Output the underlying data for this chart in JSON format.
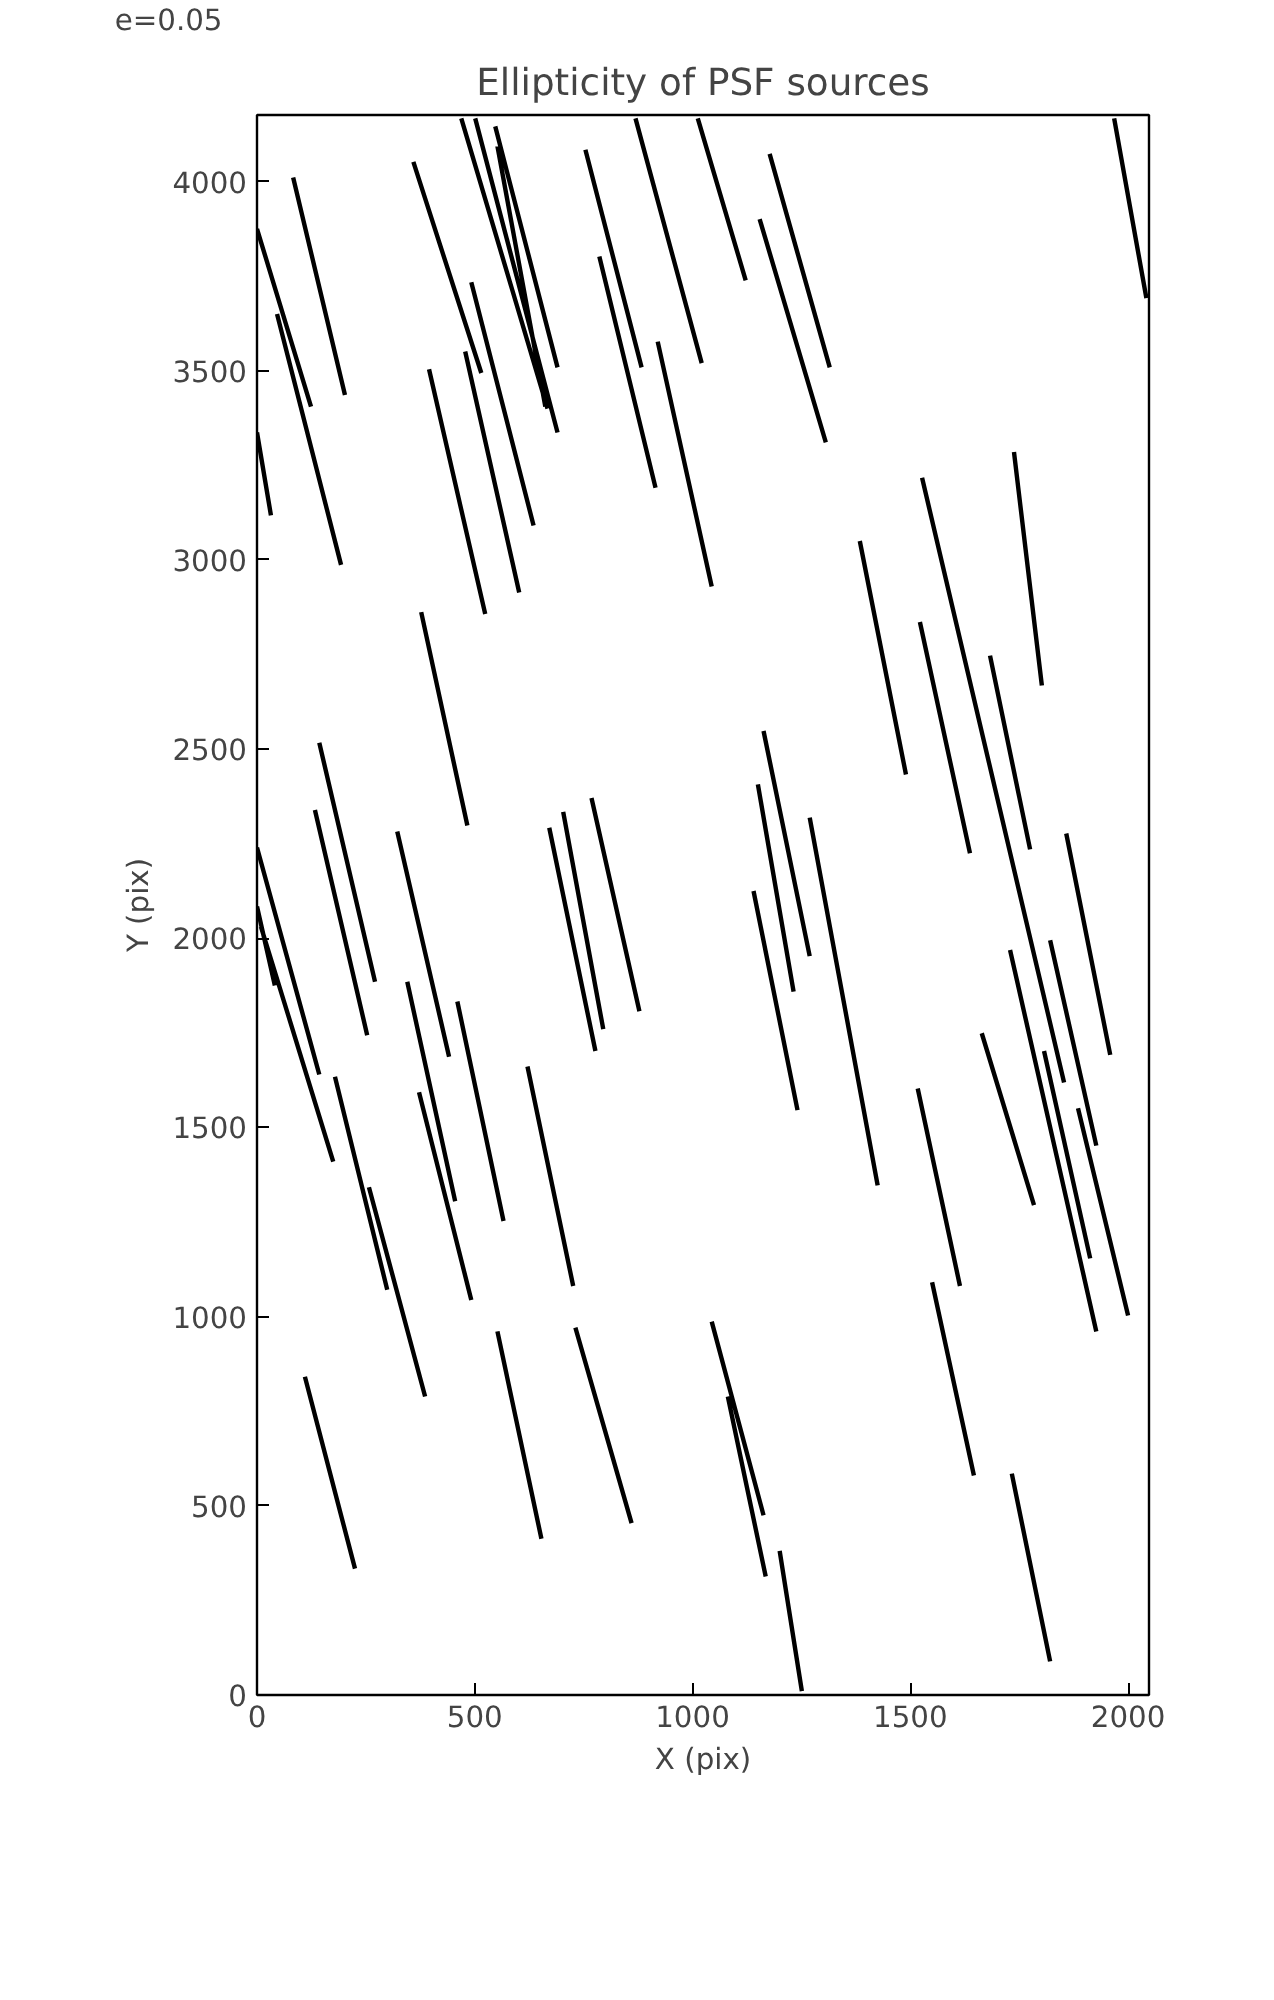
{
  "chart_data": {
    "type": "line",
    "title": "Ellipticity of PSF sources",
    "xlabel": "X (pix)",
    "ylabel": "Y (pix)",
    "xlim": [
      0,
      2048
    ],
    "ylim": [
      0,
      4176
    ],
    "xticks": [
      0,
      500,
      1000,
      1500,
      2000
    ],
    "yticks": [
      0,
      500,
      1000,
      1500,
      2000,
      2500,
      3000,
      3500,
      4000
    ],
    "grid": false,
    "legend": "top left",
    "marker": "none",
    "line_style": "solid",
    "series": [
      {
        "name": "e=0.05",
        "color": "#000000",
        "x": [
          83,
          202,
          null,
          0,
          124,
          null,
          46,
          193,
          null,
          0,
          32,
          null,
          359,
          515,
          null,
          492,
          635,
          null,
          395,
          524,
          null,
          478,
          602,
          null,
          377,
          483,
          null,
          469,
          667,
          null,
          501,
          690,
          null,
          547,
          690,
          null,
          552,
          662,
          null,
          754,
          883,
          null,
          786,
          915,
          null,
          869,
          1021,
          null,
          920,
          1044,
          null,
          1012,
          1122,
          null,
          1177,
          1315,
          null,
          1154,
          1306,
          null,
          1968,
          2042,
          null,
          1384,
          1490,
          null,
          1527,
          1853,
          null,
          1522,
          1637,
          null,
          1738,
          1802,
          null,
          1683,
          1775,
          null,
          1858,
          1959,
          null,
          1140,
          1241,
          null,
          1150,
          1232,
          null,
          1163,
          1269,
          null,
          1269,
          1425,
          null,
          1517,
          1614,
          null,
          1664,
          1784,
          null,
          1729,
          1927,
          null,
          1821,
          1927,
          null,
          1807,
          1913,
          null,
          1885,
          2000,
          null,
          1550,
          1646,
          null,
          1733,
          1821,
          null,
          1044,
          1163,
          null,
          1081,
          1168,
          null,
          1200,
          1251,
          null,
          0,
          143,
          null,
          9,
          175,
          null,
          133,
          253,
          null,
          143,
          271,
          null,
          322,
          441,
          null,
          345,
          455,
          null,
          460,
          566,
          null,
          179,
          299,
          null,
          257,
          386,
          null,
          372,
          492,
          null,
          621,
          726,
          null,
          552,
          653,
          null,
          731,
          860,
          null,
          110,
          225,
          null,
          671,
          777,
          null,
          703,
          795,
          null,
          768,
          878,
          null,
          0,
          41
        ],
        "values": [
          4011,
          3436,
          null,
          3875,
          3405,
          null,
          3650,
          2987,
          null,
          3337,
          3118,
          null,
          4052,
          3494,
          null,
          3734,
          3091,
          null,
          3504,
          2857,
          null,
          3551,
          2914,
          null,
          2862,
          2298,
          null,
          4167,
          3400,
          null,
          4167,
          3337,
          null,
          4146,
          3509,
          null,
          4094,
          3405,
          null,
          4084,
          3509,
          null,
          3802,
          3191,
          null,
          4167,
          3520,
          null,
          3577,
          2930,
          null,
          4167,
          3739,
          null,
          4073,
          3509,
          null,
          3901,
          3311,
          null,
          4167,
          3692,
          null,
          3050,
          2433,
          null,
          3217,
          1619,
          null,
          2836,
          2225,
          null,
          3285,
          2668,
          null,
          2747,
          2235,
          null,
          2277,
          1692,
          null,
          2125,
          1546,
          null,
          2407,
          1859,
          null,
          2548,
          1953,
          null,
          2319,
          1347,
          null,
          1603,
          1081,
          null,
          1749,
          1295,
          null,
          1969,
          961,
          null,
          1995,
          1452,
          null,
          1702,
          1154,
          null,
          1551,
          1003,
          null,
          1091,
          580,
          null,
          585,
          89,
          null,
          987,
          475,
          null,
          789,
          313,
          null,
          381,
          10,
          null,
          2240,
          1640,
          null,
          2031,
          1410,
          null,
          2339,
          1744,
          null,
          2517,
          1885,
          null,
          2282,
          1687,
          null,
          1885,
          1305,
          null,
          1833,
          1253,
          null,
          1634,
          1071,
          null,
          1342,
          789,
          null,
          1593,
          1044,
          null,
          1661,
          1081,
          null,
          961,
          413,
          null,
          971,
          454,
          null,
          841,
          334,
          null,
          2292,
          1702,
          null,
          2334,
          1760,
          null,
          2371,
          1807,
          null,
          2084,
          1875
        ]
      }
    ]
  }
}
